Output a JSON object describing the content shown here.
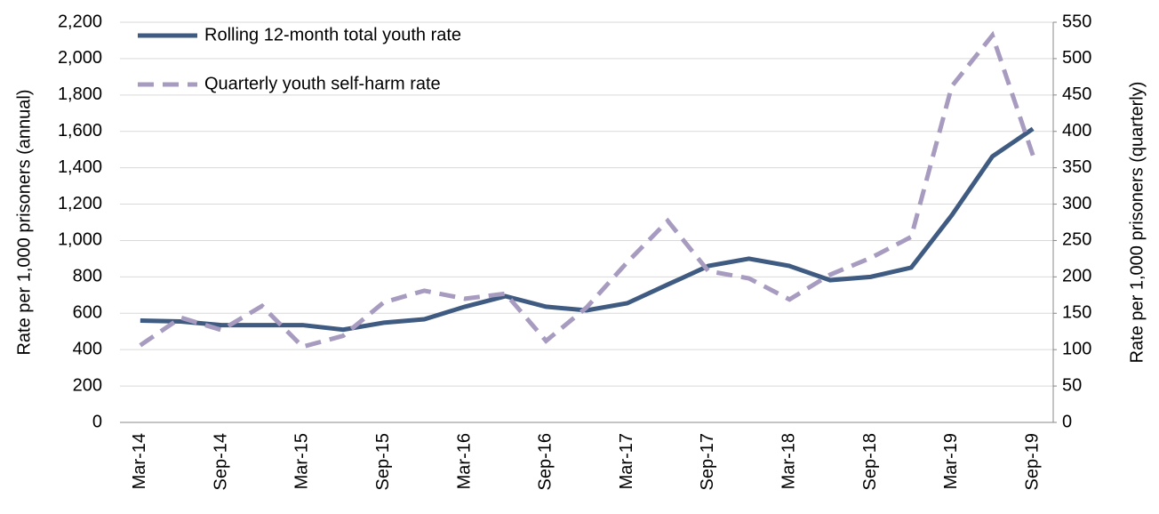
{
  "chart_data": {
    "type": "line",
    "y_label": "Rate per 1,000 prisoners (annual)",
    "y2_label": "Rate per 1,000 prisoners (quarterly)",
    "categories": [
      "Mar-14",
      null,
      "Sep-14",
      null,
      "Mar-15",
      null,
      "Sep-15",
      null,
      "Mar-16",
      null,
      "Sep-16",
      null,
      "Mar-17",
      null,
      "Sep-17",
      null,
      "Mar-18",
      null,
      "Sep-18",
      null,
      "Mar-19",
      null,
      "Sep-19"
    ],
    "series": [
      {
        "name": "Rolling 12-month total youth rate",
        "color": "#3f5b82",
        "dash": false,
        "values": [
          560,
          555,
          535,
          535,
          535,
          510,
          548,
          567,
          636,
          694,
          636,
          616,
          655,
          758,
          860,
          900,
          860,
          782,
          800,
          851,
          1139,
          1462,
          1614
        ]
      },
      {
        "name": "Quarterly youth self-harm rate",
        "color": "#a79bc0",
        "dash": true,
        "axis": "y2",
        "values": [
          106,
          144,
          127,
          160,
          104,
          119,
          165,
          181,
          170,
          177,
          112,
          158,
          220,
          277,
          208,
          198,
          169,
          203,
          226,
          255,
          462,
          532,
          367
        ]
      }
    ],
    "ylim": [
      0,
      2200
    ],
    "yticks": [
      0,
      200,
      400,
      600,
      800,
      {
        "value": 1000,
        "label": "1,000"
      },
      {
        "value": 1200,
        "label": "1,200"
      },
      {
        "value": 1400,
        "label": "1,400"
      },
      {
        "value": 1600,
        "label": "1,600"
      },
      {
        "value": 1800,
        "label": "1,800"
      },
      {
        "value": 2000,
        "label": "2,000"
      },
      {
        "value": 2200,
        "label": "2,200"
      }
    ],
    "y2lim": [
      0,
      550
    ],
    "y2ticks": [
      0,
      50,
      100,
      150,
      200,
      250,
      300,
      350,
      400,
      450,
      500,
      550
    ],
    "grid": true,
    "legend": "top-left"
  }
}
